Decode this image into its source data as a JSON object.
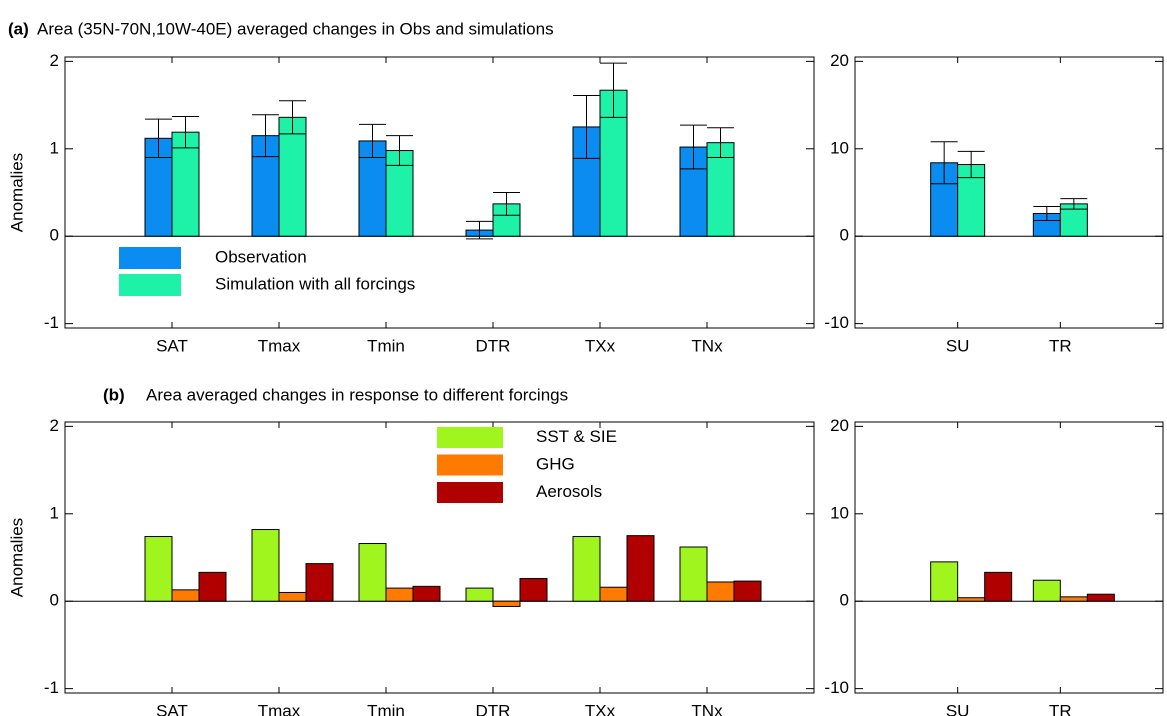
{
  "chart_data": [
    {
      "type": "bar",
      "label": "(a)",
      "title": "Area (35N-70N,10W-40E) averaged changes in Obs and simulations",
      "y_label": "Anomalies",
      "categories": [
        "SAT",
        "Tmax",
        "Tmin",
        "DTR",
        "TXx",
        "TNx"
      ],
      "series": [
        {
          "name": "Observation",
          "color": "#0a8cf0",
          "values": [
            1.12,
            1.15,
            1.09,
            0.07,
            1.25,
            1.02
          ],
          "errors": [
            0.22,
            0.24,
            0.19,
            0.1,
            0.36,
            0.25
          ]
        },
        {
          "name": "Simulation with all forcings",
          "color": "#1ef2a8",
          "values": [
            1.19,
            1.36,
            0.98,
            0.37,
            1.67,
            1.07
          ],
          "errors": [
            0.18,
            0.19,
            0.17,
            0.13,
            0.31,
            0.17
          ]
        }
      ],
      "ylim": [
        -1.05,
        2.05
      ],
      "yticks": [
        -1,
        0,
        1,
        2
      ]
    },
    {
      "type": "bar",
      "categories": [
        "SU",
        "TR"
      ],
      "series": [
        {
          "color": "#0a8cf0",
          "values": [
            8.4,
            2.6
          ],
          "errors": [
            2.4,
            0.8
          ]
        },
        {
          "color": "#1ef2a8",
          "values": [
            8.2,
            3.7
          ],
          "errors": [
            1.5,
            0.6
          ]
        }
      ],
      "ylim": [
        -10.5,
        20.5
      ],
      "yticks": [
        -10,
        0,
        10,
        20
      ]
    },
    {
      "type": "bar",
      "label": "(b)",
      "title": "Area averaged changes in response to different forcings",
      "y_label": "Anomalies",
      "categories": [
        "SAT",
        "Tmax",
        "Tmin",
        "DTR",
        "TXx",
        "TNx"
      ],
      "series": [
        {
          "name": "SST & SIE",
          "color": "#a0f51e",
          "values": [
            0.74,
            0.82,
            0.66,
            0.15,
            0.74,
            0.62
          ]
        },
        {
          "name": "GHG",
          "color": "#ff7a00",
          "values": [
            0.13,
            0.1,
            0.15,
            -0.06,
            0.16,
            0.22
          ]
        },
        {
          "name": "Aerosols",
          "color": "#b00000",
          "values": [
            0.33,
            0.43,
            0.17,
            0.26,
            0.75,
            0.23
          ]
        }
      ],
      "ylim": [
        -1.05,
        2.05
      ],
      "yticks": [
        -1,
        0,
        1,
        2
      ]
    },
    {
      "type": "bar",
      "categories": [
        "SU",
        "TR"
      ],
      "series": [
        {
          "color": "#a0f51e",
          "values": [
            4.5,
            2.4
          ]
        },
        {
          "color": "#ff7a00",
          "values": [
            0.4,
            0.5
          ]
        },
        {
          "color": "#b00000",
          "values": [
            3.3,
            0.8
          ]
        }
      ],
      "ylim": [
        -10.5,
        20.5
      ],
      "yticks": [
        -10,
        0,
        10,
        20
      ]
    }
  ]
}
